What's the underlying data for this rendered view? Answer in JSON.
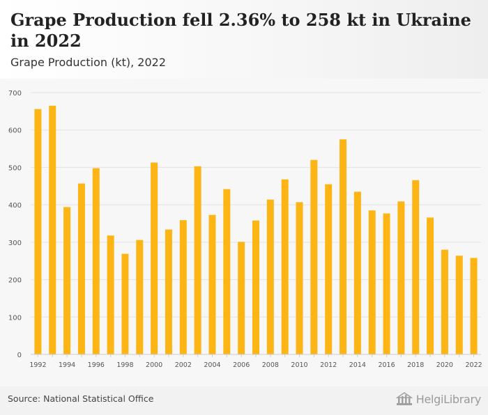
{
  "header": {
    "title": "Grape Production fell 2.36% to 258 kt in Ukraine in 2022",
    "subtitle": "Grape Production (kt), 2022"
  },
  "footer": {
    "source": "Source: National Statistical Office",
    "logo_text": "HelgiLibrary"
  },
  "colors": {
    "bar": "#FDB515",
    "grid": "#e2e2e2",
    "axis_text": "#555555"
  },
  "chart_data": {
    "type": "bar",
    "title": "Grape Production fell 2.36% to 258 kt in Ukraine in 2022",
    "subtitle": "Grape Production (kt), 2022",
    "xlabel": "",
    "ylabel": "",
    "ylim": [
      0,
      700
    ],
    "yticks": [
      0,
      100,
      200,
      300,
      400,
      500,
      600,
      700
    ],
    "grid": true,
    "legend": "none",
    "categories": [
      "1992",
      "1993",
      "1994",
      "1995",
      "1996",
      "1997",
      "1998",
      "1999",
      "2000",
      "2001",
      "2002",
      "2003",
      "2004",
      "2005",
      "2006",
      "2007",
      "2008",
      "2009",
      "2010",
      "2011",
      "2012",
      "2013",
      "2014",
      "2015",
      "2016",
      "2017",
      "2018",
      "2019",
      "2020",
      "2021",
      "2022"
    ],
    "x_tick_labels": [
      "1992",
      "1994",
      "1996",
      "1998",
      "2000",
      "2002",
      "2004",
      "2006",
      "2008",
      "2010",
      "2012",
      "2014",
      "2016",
      "2018",
      "2020",
      "2022"
    ],
    "values": [
      656,
      665,
      394,
      457,
      498,
      318,
      269,
      306,
      513,
      334,
      359,
      503,
      373,
      442,
      301,
      358,
      414,
      468,
      407,
      520,
      455,
      575,
      435,
      385,
      377,
      409,
      466,
      366,
      280,
      264,
      258
    ]
  }
}
